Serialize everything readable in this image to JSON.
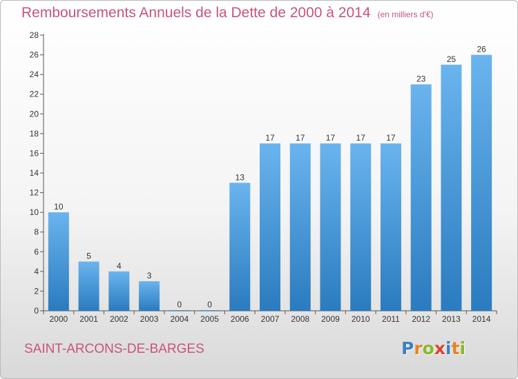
{
  "header": {
    "title": "Remboursements Annuels de la Dette de 2000 à 2014",
    "subtitle": "(en milliers d'€)"
  },
  "footer": {
    "commune": "SAINT-ARCONS-DE-BARGES",
    "logo": "Proxiti"
  },
  "colors": {
    "title": "#c8547a",
    "bar_top": "#6ab4ee",
    "bar_bottom": "#2a7bbf",
    "logo_letters": [
      "#3d7fc4",
      "#e8821f",
      "#8ab82c",
      "#d8442e",
      "#3d7fc4",
      "#e8821f",
      "#8ab82c"
    ]
  },
  "chart_data": {
    "type": "bar",
    "title": "Remboursements Annuels de la Dette de 2000 à 2014",
    "subtitle": "(en milliers d'€)",
    "categories": [
      "2000",
      "2001",
      "2002",
      "2003",
      "2004",
      "2005",
      "2006",
      "2007",
      "2008",
      "2009",
      "2010",
      "2011",
      "2012",
      "2013",
      "2014"
    ],
    "values": [
      10,
      5,
      4,
      3,
      0,
      0,
      13,
      17,
      17,
      17,
      17,
      17,
      23,
      25,
      26
    ],
    "ylim": [
      0,
      28
    ],
    "yticks": [
      0,
      2,
      4,
      6,
      8,
      10,
      12,
      14,
      16,
      18,
      20,
      22,
      24,
      26,
      28
    ],
    "xlabel": "",
    "ylabel": "",
    "grid": false,
    "data_labels": true
  }
}
